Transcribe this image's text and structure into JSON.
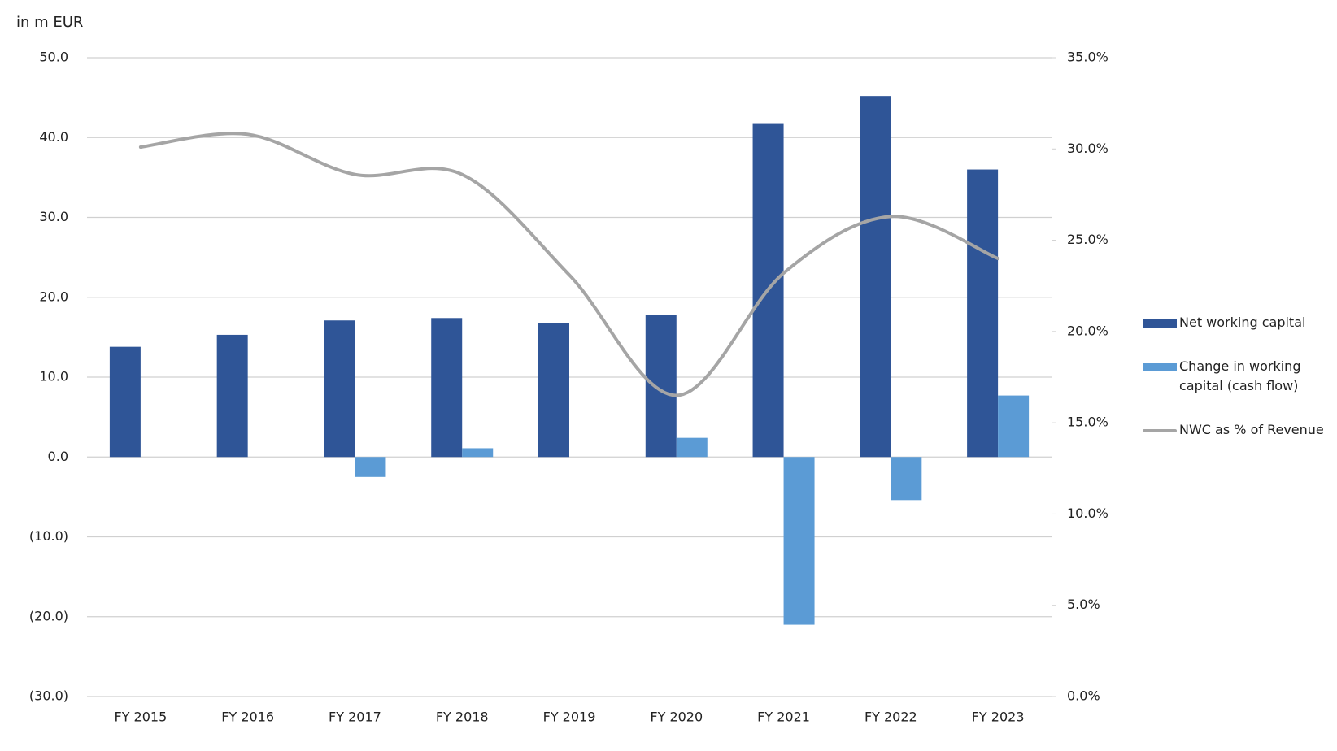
{
  "chart_data": {
    "type": "combo",
    "y_label": "in m EUR",
    "categories": [
      "FY 2015",
      "FY 2016",
      "FY 2017",
      "FY 2018",
      "FY 2019",
      "FY 2020",
      "FY 2021",
      "FY 2022",
      "FY 2023"
    ],
    "series": [
      {
        "name": "Net working capital",
        "type": "bar",
        "color": "#2f5597",
        "values": [
          13.8,
          15.3,
          17.1,
          17.4,
          16.8,
          17.8,
          41.8,
          45.2,
          36.0
        ]
      },
      {
        "name": "Change in working capital (cash flow)",
        "type": "bar",
        "color": "#5b9bd5",
        "values": [
          null,
          null,
          -2.5,
          1.1,
          null,
          2.4,
          -21.0,
          -5.4,
          7.7
        ]
      },
      {
        "name": "NWC as % of Revenue",
        "type": "line",
        "axis": "y2",
        "color": "#a5a5a5",
        "values": [
          30.1,
          30.8,
          28.6,
          28.6,
          23.1,
          16.5,
          23.2,
          26.3,
          24.0
        ]
      }
    ],
    "ylim": [
      -30,
      50
    ],
    "yticks": [
      {
        "value": -30,
        "label": "(30.0)"
      },
      {
        "value": -20,
        "label": "(20.0)"
      },
      {
        "value": -10,
        "label": "(10.0)"
      },
      {
        "value": 0,
        "label": "0.0"
      },
      {
        "value": 10,
        "label": "10.0"
      },
      {
        "value": 20,
        "label": "20.0"
      },
      {
        "value": 30,
        "label": "30.0"
      },
      {
        "value": 40,
        "label": "40.0"
      },
      {
        "value": 50,
        "label": "50.0"
      }
    ],
    "y2lim": [
      0,
      35
    ],
    "y2ticks": [
      {
        "value": 0,
        "label": "0.0%"
      },
      {
        "value": 5,
        "label": "5.0%"
      },
      {
        "value": 10,
        "label": "10.0%"
      },
      {
        "value": 15,
        "label": "15.0%"
      },
      {
        "value": 20,
        "label": "20.0%"
      },
      {
        "value": 25,
        "label": "25.0%"
      },
      {
        "value": 30,
        "label": "30.0%"
      },
      {
        "value": 35,
        "label": "35.0%"
      }
    ],
    "grid": true,
    "legend": "right"
  }
}
